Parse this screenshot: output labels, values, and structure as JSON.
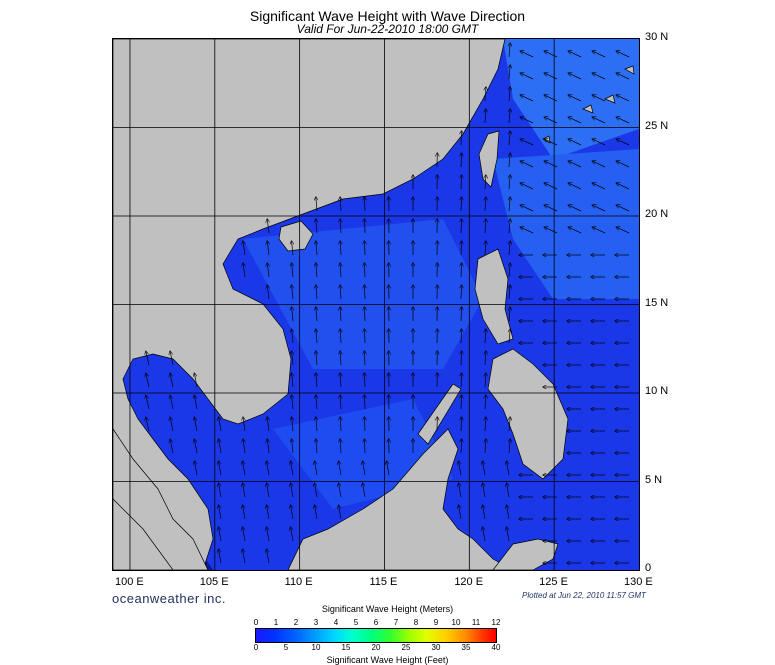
{
  "title": "Significant Wave Height with Wave Direction",
  "subtitle": "Valid For Jun-22-2010 18:00 GMT",
  "lat_labels": [
    "30 N",
    "25 N",
    "20 N",
    "15 N",
    "10 N",
    "5 N",
    "0"
  ],
  "lon_labels": [
    "100 E",
    "105 E",
    "110 E",
    "115 E",
    "120 E",
    "125 E",
    "130 E"
  ],
  "brand": "oceanweather inc.",
  "plotted": "Plotted at Jun 22, 2010 11:57 GMT",
  "colorbar": {
    "top_title": "Significant Wave Height (Meters)",
    "bottom_title": "Significant Wave Height (Feet)",
    "meters_ticks": [
      "0",
      "1",
      "2",
      "3",
      "4",
      "5",
      "6",
      "7",
      "8",
      "9",
      "10",
      "11",
      "12"
    ],
    "feet_ticks": [
      "0",
      "5",
      "10",
      "15",
      "20",
      "25",
      "30",
      "35",
      "40"
    ]
  },
  "colors": {
    "land": "#c0c0c0",
    "sea_dark": "#1a33e0",
    "sea_mid": "#1f55f0",
    "sea_light": "#2a6cf5"
  },
  "map_extent": {
    "lon": [
      99,
      130
    ],
    "lat": [
      0,
      30
    ]
  },
  "wave_direction": "generally toward north / north-west in the South China Sea; toward west east of the Philippines"
}
